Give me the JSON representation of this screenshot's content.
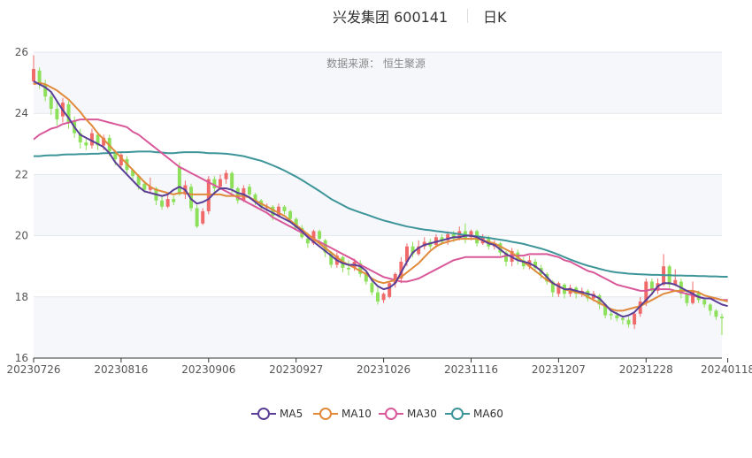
{
  "header": {
    "title": "兴发集团 600141",
    "period": "日K"
  },
  "source_label": "数据来源：  恒生聚源",
  "colors": {
    "up": "#f06a6a",
    "down": "#8ce05a",
    "ma5": "#5b3e96",
    "ma10": "#e08a3c",
    "ma30": "#d9589a",
    "ma60": "#3e9599"
  },
  "chart_data": {
    "type": "candlestick",
    "title": "兴发集团 600141",
    "ylim": [
      16,
      26
    ],
    "y_ticks": [
      16,
      18,
      20,
      22,
      24,
      26
    ],
    "x_tick_labels": [
      "20230726",
      "20230816",
      "20230906",
      "20230927",
      "20231026",
      "20231116",
      "20231207",
      "20231228",
      "20240118"
    ],
    "legend": [
      "MA5",
      "MA10",
      "MA30",
      "MA60"
    ],
    "legend_position": "bottom",
    "dates": [
      "20230726",
      "20230727",
      "20230728",
      "20230731",
      "20230801",
      "20230802",
      "20230803",
      "20230804",
      "20230807",
      "20230808",
      "20230809",
      "20230810",
      "20230811",
      "20230814",
      "20230815",
      "20230816",
      "20230817",
      "20230818",
      "20230821",
      "20230822",
      "20230823",
      "20230824",
      "20230825",
      "20230828",
      "20230829",
      "20230830",
      "20230831",
      "20230901",
      "20230904",
      "20230905",
      "20230906",
      "20230907",
      "20230908",
      "20230911",
      "20230912",
      "20230913",
      "20230914",
      "20230915",
      "20230918",
      "20230919",
      "20230920",
      "20230921",
      "20230922",
      "20230925",
      "20230926",
      "20230927",
      "20230928",
      "20231009",
      "20231010",
      "20231011",
      "20231012",
      "20231013",
      "20231016",
      "20231017",
      "20231018",
      "20231019",
      "20231020",
      "20231023",
      "20231024",
      "20231025",
      "20231026",
      "20231027",
      "20231030",
      "20231031",
      "20231101",
      "20231102",
      "20231103",
      "20231106",
      "20231107",
      "20231108",
      "20231109",
      "20231110",
      "20231113",
      "20231114",
      "20231115",
      "20231116",
      "20231117",
      "20231120",
      "20231121",
      "20231122",
      "20231123",
      "20231124",
      "20231127",
      "20231128",
      "20231129",
      "20231130",
      "20231201",
      "20231204",
      "20231205",
      "20231206",
      "20231207",
      "20231208",
      "20231211",
      "20231212",
      "20231213",
      "20231214",
      "20231215",
      "20231218",
      "20231219",
      "20231220",
      "20231221",
      "20231222",
      "20231225",
      "20231226",
      "20231227",
      "20231228",
      "20231229",
      "20240102",
      "20240103",
      "20240104",
      "20240105",
      "20240108",
      "20240109",
      "20240110",
      "20240111",
      "20240112",
      "20240115",
      "20240116",
      "20240117",
      "20240118"
    ],
    "candles": [
      [
        25.05,
        25.45,
        25.9,
        24.95
      ],
      [
        25.4,
        24.95,
        25.5,
        24.8
      ],
      [
        24.95,
        24.55,
        25.1,
        24.4
      ],
      [
        24.55,
        24.15,
        24.7,
        23.95
      ],
      [
        24.15,
        23.8,
        24.4,
        23.6
      ],
      [
        23.9,
        24.35,
        24.5,
        23.7
      ],
      [
        24.3,
        23.7,
        24.4,
        23.5
      ],
      [
        23.75,
        23.35,
        23.9,
        23.2
      ],
      [
        23.35,
        23.05,
        23.5,
        22.85
      ],
      [
        23.05,
        22.95,
        23.2,
        22.8
      ],
      [
        22.95,
        23.35,
        23.5,
        22.85
      ],
      [
        23.3,
        22.95,
        23.4,
        22.8
      ],
      [
        22.95,
        23.2,
        23.3,
        22.8
      ],
      [
        23.2,
        22.75,
        23.3,
        22.6
      ],
      [
        22.7,
        22.5,
        22.8,
        22.3
      ],
      [
        22.3,
        22.65,
        22.7,
        22.2
      ],
      [
        22.5,
        22.15,
        22.6,
        22.0
      ],
      [
        22.15,
        21.95,
        22.2,
        21.8
      ],
      [
        21.95,
        21.65,
        22.0,
        21.5
      ],
      [
        21.7,
        21.5,
        21.8,
        21.4
      ],
      [
        21.5,
        21.6,
        21.9,
        21.4
      ],
      [
        21.55,
        21.15,
        21.6,
        21.0
      ],
      [
        21.15,
        20.95,
        21.3,
        20.85
      ],
      [
        20.95,
        21.2,
        21.4,
        20.9
      ],
      [
        21.2,
        21.1,
        21.3,
        21.0
      ],
      [
        22.25,
        21.35,
        22.4,
        21.3
      ],
      [
        21.35,
        21.65,
        21.8,
        21.2
      ],
      [
        21.6,
        20.9,
        21.7,
        20.8
      ],
      [
        20.9,
        20.3,
        21.0,
        20.25
      ],
      [
        20.4,
        20.8,
        20.9,
        20.35
      ],
      [
        20.8,
        21.85,
        21.95,
        20.7
      ],
      [
        21.85,
        21.55,
        21.95,
        21.4
      ],
      [
        21.6,
        21.85,
        22.0,
        21.5
      ],
      [
        21.85,
        22.05,
        22.15,
        21.7
      ],
      [
        22.05,
        21.55,
        22.1,
        21.4
      ],
      [
        21.55,
        21.15,
        21.6,
        21.05
      ],
      [
        21.15,
        21.55,
        21.65,
        21.1
      ],
      [
        21.6,
        21.35,
        21.7,
        21.2
      ],
      [
        21.35,
        21.15,
        21.4,
        21.0
      ],
      [
        21.15,
        20.95,
        21.2,
        20.85
      ],
      [
        20.95,
        20.95,
        21.05,
        20.8
      ],
      [
        20.95,
        20.65,
        21.0,
        20.5
      ],
      [
        20.65,
        20.95,
        21.05,
        20.6
      ],
      [
        20.95,
        20.8,
        21.0,
        20.7
      ],
      [
        20.8,
        20.55,
        20.85,
        20.45
      ],
      [
        20.55,
        20.25,
        20.6,
        20.2
      ],
      [
        20.25,
        19.95,
        20.35,
        19.9
      ],
      [
        19.9,
        19.75,
        20.0,
        19.6
      ],
      [
        19.75,
        20.15,
        20.2,
        19.7
      ],
      [
        20.15,
        19.9,
        20.2,
        19.75
      ],
      [
        19.85,
        19.45,
        19.9,
        19.3
      ],
      [
        19.45,
        19.05,
        19.5,
        18.95
      ],
      [
        19.05,
        19.35,
        19.45,
        18.95
      ],
      [
        19.3,
        18.95,
        19.35,
        18.8
      ],
      [
        18.95,
        18.9,
        19.2,
        18.7
      ],
      [
        18.95,
        19.15,
        19.25,
        18.85
      ],
      [
        19.1,
        18.75,
        19.2,
        18.65
      ],
      [
        18.75,
        18.5,
        18.85,
        18.4
      ],
      [
        18.45,
        18.15,
        18.6,
        18.05
      ],
      [
        18.15,
        17.85,
        18.3,
        17.75
      ],
      [
        17.9,
        18.1,
        18.15,
        17.8
      ],
      [
        18.0,
        18.45,
        18.5,
        17.95
      ],
      [
        18.45,
        18.75,
        18.8,
        18.3
      ],
      [
        18.6,
        19.15,
        19.3,
        18.45
      ],
      [
        19.15,
        19.65,
        19.75,
        19.0
      ],
      [
        19.65,
        19.4,
        19.8,
        19.3
      ],
      [
        19.4,
        19.65,
        19.85,
        19.35
      ],
      [
        19.65,
        19.8,
        19.95,
        19.55
      ],
      [
        19.8,
        19.65,
        19.9,
        19.55
      ],
      [
        19.7,
        19.95,
        20.05,
        19.6
      ],
      [
        19.95,
        19.8,
        20.05,
        19.7
      ],
      [
        19.85,
        20.05,
        20.15,
        19.7
      ],
      [
        20.05,
        19.9,
        20.15,
        19.8
      ],
      [
        19.95,
        20.15,
        20.3,
        19.85
      ],
      [
        20.15,
        19.9,
        20.4,
        19.75
      ],
      [
        19.95,
        20.15,
        20.2,
        19.85
      ],
      [
        20.15,
        19.75,
        20.2,
        19.65
      ],
      [
        19.75,
        19.95,
        20.05,
        19.7
      ],
      [
        19.9,
        19.65,
        20.0,
        19.55
      ],
      [
        19.65,
        19.75,
        19.85,
        19.55
      ],
      [
        19.75,
        19.45,
        19.8,
        19.35
      ],
      [
        19.45,
        19.15,
        19.5,
        19.0
      ],
      [
        19.15,
        19.5,
        19.6,
        19.0
      ],
      [
        19.45,
        19.2,
        19.55,
        19.05
      ],
      [
        19.2,
        19.0,
        19.3,
        18.9
      ],
      [
        19.0,
        19.2,
        19.35,
        18.9
      ],
      [
        19.15,
        18.95,
        19.25,
        18.8
      ],
      [
        18.95,
        18.75,
        19.05,
        18.6
      ],
      [
        18.75,
        18.5,
        18.8,
        18.4
      ],
      [
        18.5,
        18.15,
        18.55,
        18.0
      ],
      [
        18.1,
        18.45,
        18.5,
        18.0
      ],
      [
        18.4,
        18.1,
        18.45,
        17.95
      ],
      [
        18.1,
        18.3,
        18.4,
        18.0
      ],
      [
        18.3,
        18.1,
        18.35,
        17.95
      ],
      [
        18.1,
        18.2,
        18.3,
        18.0
      ],
      [
        18.2,
        17.95,
        18.25,
        17.85
      ],
      [
        17.95,
        18.1,
        18.2,
        17.85
      ],
      [
        18.05,
        17.75,
        18.1,
        17.6
      ],
      [
        17.75,
        17.4,
        17.8,
        17.3
      ],
      [
        17.45,
        17.4,
        17.6,
        17.25
      ],
      [
        17.4,
        17.3,
        17.5,
        17.2
      ],
      [
        17.3,
        17.25,
        17.4,
        17.1
      ],
      [
        17.25,
        17.1,
        17.35,
        17.0
      ],
      [
        17.1,
        17.45,
        17.5,
        16.95
      ],
      [
        17.45,
        17.85,
        18.0,
        17.35
      ],
      [
        17.8,
        18.5,
        18.6,
        17.7
      ],
      [
        18.5,
        18.2,
        18.6,
        18.05
      ],
      [
        18.2,
        18.45,
        18.6,
        18.1
      ],
      [
        18.4,
        19.0,
        19.4,
        18.35
      ],
      [
        19.0,
        18.4,
        19.05,
        18.3
      ],
      [
        18.4,
        18.55,
        18.9,
        18.35
      ],
      [
        18.5,
        18.1,
        18.6,
        17.95
      ],
      [
        18.1,
        17.8,
        18.2,
        17.7
      ],
      [
        17.8,
        18.2,
        18.5,
        17.75
      ],
      [
        18.15,
        17.9,
        18.2,
        17.8
      ],
      [
        17.9,
        17.75,
        17.95,
        17.65
      ],
      [
        17.75,
        17.55,
        17.8,
        17.4
      ],
      [
        17.55,
        17.35,
        17.6,
        17.25
      ],
      [
        17.35,
        17.3,
        17.45,
        16.75
      ]
    ],
    "ma5": [
      25.05,
      24.95,
      24.85,
      24.7,
      24.4,
      24.1,
      23.85,
      23.55,
      23.3,
      23.2,
      23.1,
      23.0,
      22.9,
      22.7,
      22.4,
      22.2,
      22.0,
      21.8,
      21.6,
      21.45,
      21.4,
      21.35,
      21.3,
      21.35,
      21.5,
      21.6,
      21.5,
      21.2,
      21.05,
      21.1,
      21.2,
      21.4,
      21.55,
      21.55,
      21.5,
      21.4,
      21.35,
      21.25,
      21.1,
      20.95,
      20.85,
      20.75,
      20.65,
      20.55,
      20.45,
      20.3,
      20.15,
      19.95,
      19.8,
      19.65,
      19.5,
      19.35,
      19.2,
      19.1,
      19.05,
      19.05,
      19.0,
      18.85,
      18.55,
      18.35,
      18.25,
      18.3,
      18.45,
      18.8,
      19.15,
      19.45,
      19.6,
      19.7,
      19.75,
      19.8,
      19.85,
      19.9,
      19.95,
      19.95,
      20.0,
      20.0,
      19.95,
      19.85,
      19.75,
      19.7,
      19.55,
      19.4,
      19.3,
      19.2,
      19.15,
      19.1,
      19.0,
      18.85,
      18.65,
      18.45,
      18.35,
      18.25,
      18.25,
      18.2,
      18.15,
      18.1,
      18.05,
      17.95,
      17.75,
      17.55,
      17.45,
      17.35,
      17.4,
      17.5,
      17.7,
      17.9,
      18.1,
      18.35,
      18.45,
      18.45,
      18.4,
      18.3,
      18.2,
      18.1,
      18.0,
      17.95,
      17.95,
      17.85,
      17.75,
      17.7
    ],
    "ma10": [
      24.95,
      25.0,
      24.95,
      24.85,
      24.75,
      24.6,
      24.45,
      24.25,
      24.05,
      23.8,
      23.6,
      23.35,
      23.15,
      22.95,
      22.75,
      22.55,
      22.35,
      22.15,
      21.95,
      21.75,
      21.6,
      21.5,
      21.45,
      21.4,
      21.35,
      21.4,
      21.4,
      21.35,
      21.35,
      21.35,
      21.35,
      21.35,
      21.35,
      21.3,
      21.3,
      21.3,
      21.3,
      21.25,
      21.15,
      21.05,
      20.95,
      20.85,
      20.75,
      20.65,
      20.5,
      20.35,
      20.2,
      20.05,
      19.9,
      19.75,
      19.6,
      19.45,
      19.3,
      19.15,
      19.05,
      18.95,
      18.85,
      18.75,
      18.6,
      18.5,
      18.45,
      18.5,
      18.55,
      18.65,
      18.8,
      18.95,
      19.1,
      19.3,
      19.5,
      19.65,
      19.75,
      19.8,
      19.85,
      19.9,
      19.9,
      19.9,
      19.9,
      19.85,
      19.8,
      19.75,
      19.65,
      19.55,
      19.45,
      19.3,
      19.15,
      19.0,
      18.85,
      18.7,
      18.55,
      18.45,
      18.35,
      18.25,
      18.2,
      18.15,
      18.1,
      18.0,
      17.9,
      17.8,
      17.7,
      17.6,
      17.55,
      17.55,
      17.6,
      17.65,
      17.7,
      17.8,
      17.9,
      18.0,
      18.1,
      18.15,
      18.2,
      18.2,
      18.2,
      18.2,
      18.15,
      18.05,
      18.0,
      17.95,
      17.9,
      17.85
    ],
    "ma30": [
      23.15,
      23.3,
      23.4,
      23.5,
      23.55,
      23.65,
      23.7,
      23.75,
      23.8,
      23.8,
      23.8,
      23.8,
      23.75,
      23.7,
      23.65,
      23.6,
      23.55,
      23.4,
      23.3,
      23.15,
      23.0,
      22.85,
      22.7,
      22.55,
      22.4,
      22.25,
      22.15,
      22.05,
      21.95,
      21.85,
      21.75,
      21.65,
      21.55,
      21.45,
      21.35,
      21.25,
      21.15,
      21.05,
      20.95,
      20.85,
      20.75,
      20.6,
      20.5,
      20.4,
      20.3,
      20.2,
      20.1,
      20.0,
      19.9,
      19.8,
      19.7,
      19.6,
      19.5,
      19.4,
      19.3,
      19.2,
      19.05,
      18.95,
      18.85,
      18.75,
      18.65,
      18.6,
      18.55,
      18.5,
      18.5,
      18.55,
      18.6,
      18.7,
      18.8,
      18.9,
      19.0,
      19.1,
      19.2,
      19.25,
      19.3,
      19.3,
      19.3,
      19.3,
      19.3,
      19.3,
      19.3,
      19.35,
      19.35,
      19.35,
      19.35,
      19.4,
      19.4,
      19.4,
      19.4,
      19.35,
      19.3,
      19.2,
      19.15,
      19.05,
      18.95,
      18.85,
      18.8,
      18.7,
      18.6,
      18.5,
      18.4,
      18.35,
      18.3,
      18.25,
      18.2,
      18.2,
      18.25,
      18.25,
      18.25,
      18.25,
      18.2,
      18.15,
      18.1,
      18.05,
      18.0,
      17.95,
      17.95,
      17.95,
      17.9,
      17.9
    ],
    "ma60": [
      22.6,
      22.6,
      22.62,
      22.63,
      22.63,
      22.65,
      22.66,
      22.66,
      22.67,
      22.67,
      22.68,
      22.68,
      22.7,
      22.7,
      22.72,
      22.73,
      22.73,
      22.74,
      22.75,
      22.75,
      22.75,
      22.73,
      22.72,
      22.7,
      22.7,
      22.72,
      22.73,
      22.73,
      22.73,
      22.72,
      22.7,
      22.7,
      22.69,
      22.68,
      22.66,
      22.63,
      22.6,
      22.55,
      22.5,
      22.45,
      22.38,
      22.3,
      22.22,
      22.13,
      22.03,
      21.93,
      21.82,
      21.7,
      21.58,
      21.46,
      21.33,
      21.2,
      21.1,
      21.0,
      20.9,
      20.83,
      20.76,
      20.7,
      20.63,
      20.56,
      20.5,
      20.45,
      20.4,
      20.35,
      20.3,
      20.27,
      20.23,
      20.2,
      20.18,
      20.15,
      20.13,
      20.1,
      20.08,
      20.05,
      20.02,
      20.0,
      19.98,
      19.95,
      19.93,
      19.9,
      19.87,
      19.84,
      19.8,
      19.77,
      19.73,
      19.68,
      19.63,
      19.58,
      19.52,
      19.45,
      19.38,
      19.3,
      19.22,
      19.15,
      19.08,
      19.02,
      18.97,
      18.92,
      18.87,
      18.83,
      18.8,
      18.78,
      18.76,
      18.75,
      18.74,
      18.73,
      18.72,
      18.72,
      18.71,
      18.71,
      18.7,
      18.7,
      18.69,
      18.69,
      18.68,
      18.68,
      18.67,
      18.67,
      18.66,
      18.66
    ]
  }
}
